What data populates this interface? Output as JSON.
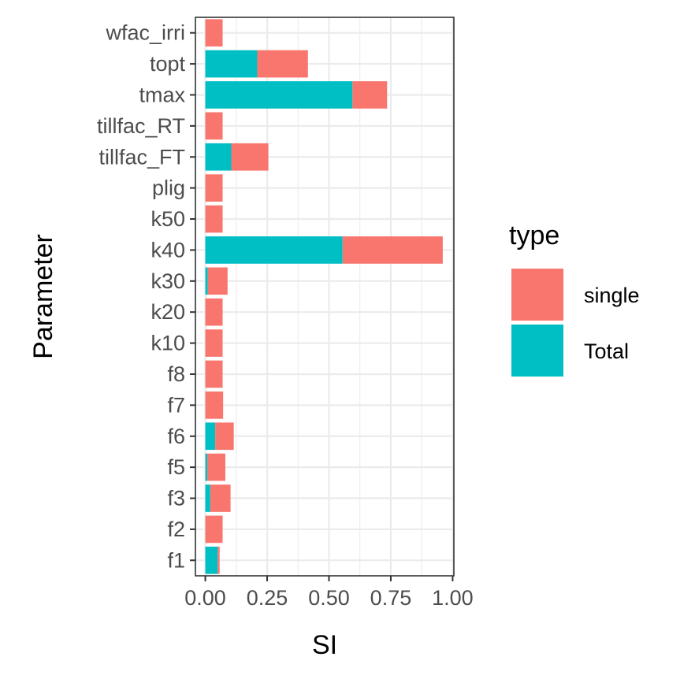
{
  "chart_data": {
    "type": "bar",
    "orientation": "horizontal",
    "stacked": true,
    "xlabel": "SI",
    "ylabel": "Parameter",
    "xlim": [
      -0.04,
      1.005
    ],
    "xticks": [
      0,
      0.25,
      0.5,
      0.75,
      1
    ],
    "xtick_labels": [
      "0.00",
      "0.25",
      "0.50",
      "0.75",
      "1.00"
    ],
    "grid": true,
    "legend_position": "right",
    "legend_title": "type",
    "categories": [
      "wfac_irri",
      "topt",
      "tmax",
      "tillfac_RT",
      "tillfac_FT",
      "plig",
      "k50",
      "k40",
      "k30",
      "k20",
      "k10",
      "f8",
      "f7",
      "f6",
      "f5",
      "f3",
      "f2",
      "f1"
    ],
    "series": [
      {
        "name": "Total",
        "color": "#00BFC4",
        "values": [
          0,
          0.21,
          0.595,
          0,
          0.105,
          0,
          0,
          0.555,
          0.01,
          0,
          0,
          0,
          0,
          0.04,
          0.008,
          0.02,
          0,
          0.05
        ]
      },
      {
        "name": "single",
        "color": "#F8766D",
        "values": [
          0.07,
          0.205,
          0.14,
          0.07,
          0.15,
          0.07,
          0.07,
          0.405,
          0.08,
          0.07,
          0.07,
          0.07,
          0.072,
          0.075,
          0.073,
          0.082,
          0.07,
          0.008
        ]
      }
    ],
    "legend_order": [
      "single",
      "Total"
    ]
  }
}
